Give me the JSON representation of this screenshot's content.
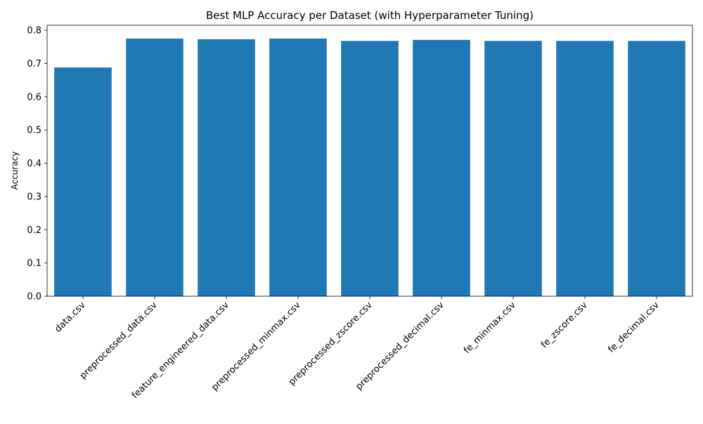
{
  "chart_data": {
    "type": "bar",
    "title": "Best MLP Accuracy per Dataset (with Hyperparameter Tuning)",
    "xlabel": "",
    "ylabel": "Accuracy",
    "categories": [
      "data.csv",
      "preprocessed_data.csv",
      "feature_engineered_data.csv",
      "preprocessed_minmax.csv",
      "preprocessed_zscore.csv",
      "preprocessed_decimal.csv",
      "fe_minmax.csv",
      "fe_zscore.csv",
      "fe_decimal.csv"
    ],
    "values": [
      0.688,
      0.775,
      0.773,
      0.775,
      0.768,
      0.771,
      0.768,
      0.768,
      0.768
    ],
    "ylim": [
      0,
      0.815
    ],
    "yticks": [
      "0.0",
      "0.1",
      "0.2",
      "0.3",
      "0.4",
      "0.5",
      "0.6",
      "0.7",
      "0.8"
    ],
    "grid": false,
    "legend": "none",
    "bar_color": "#1f77b4"
  }
}
